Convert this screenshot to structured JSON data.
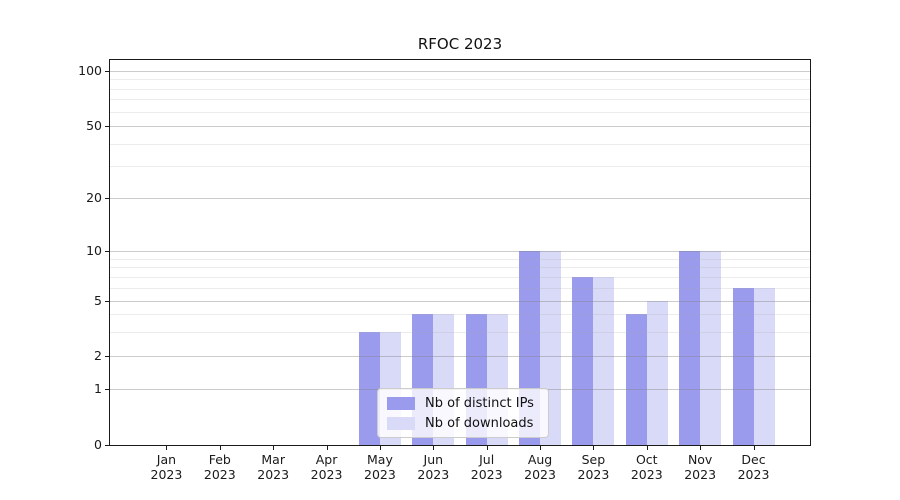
{
  "title": "RFOC 2023",
  "axes": {
    "y_tick_labels": [
      "0",
      "1",
      "2",
      "5",
      "10",
      "20",
      "50",
      "100"
    ],
    "x_tick_months": [
      "Jan",
      "Feb",
      "Mar",
      "Apr",
      "May",
      "Jun",
      "Jul",
      "Aug",
      "Sep",
      "Oct",
      "Nov",
      "Dec"
    ],
    "x_tick_year": "2023"
  },
  "colors": {
    "distinct_ips_bar": "#9b9bee",
    "downloads_bar": "#d9d9f8",
    "major_grid": "#cccccc",
    "minor_grid": "#ebebeb",
    "spine": "#1a1a1a"
  },
  "chart_data": {
    "type": "bar",
    "title": "RFOC 2023",
    "categories": [
      "Jan 2023",
      "Feb 2023",
      "Mar 2023",
      "Apr 2023",
      "May 2023",
      "Jun 2023",
      "Jul 2023",
      "Aug 2023",
      "Sep 2023",
      "Oct 2023",
      "Nov 2023",
      "Dec 2023"
    ],
    "series": [
      {
        "name": "Nb of distinct IPs",
        "color": "#9b9bee",
        "values": [
          0,
          0,
          0,
          0,
          3,
          4,
          4,
          10,
          7,
          4,
          10,
          6
        ]
      },
      {
        "name": "Nb of downloads",
        "color": "#d9d9f8",
        "values": [
          0,
          0,
          0,
          0,
          3,
          4,
          4,
          10,
          7,
          5,
          10,
          6
        ]
      }
    ],
    "xlabel": "",
    "ylabel": "",
    "yscale": "symlog",
    "ylim": [
      0,
      115
    ],
    "yticks_major": [
      0,
      1,
      2,
      5,
      10,
      20,
      50,
      100
    ],
    "yticks_minor": [
      3,
      4,
      6,
      7,
      8,
      9,
      30,
      40,
      60,
      70,
      80,
      90
    ],
    "grid": "horizontal major+minor, drawn over bars",
    "legend_position": "lower center inside axes"
  }
}
